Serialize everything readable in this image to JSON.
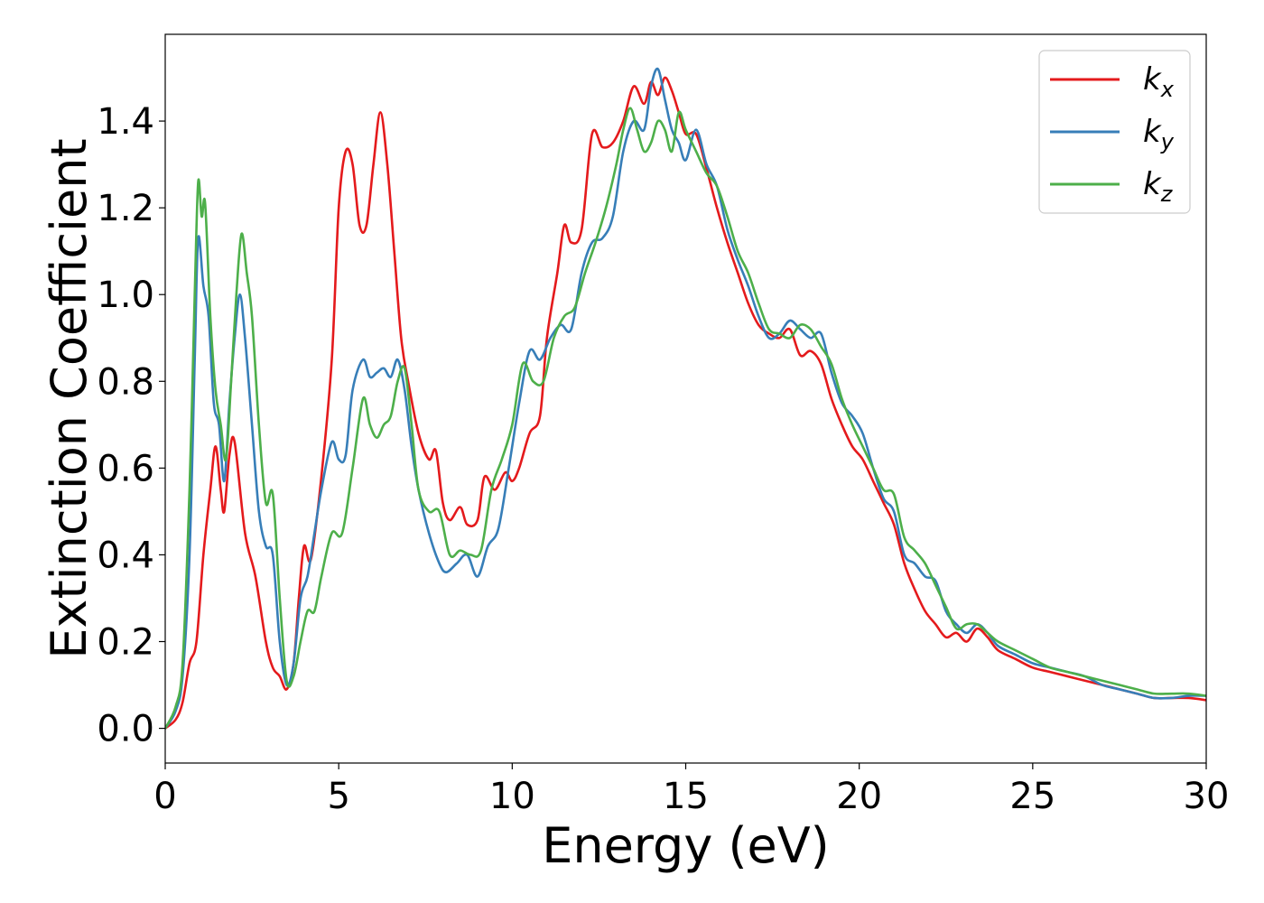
{
  "chart_data": {
    "type": "line",
    "title": "",
    "xlabel": "Energy (eV)",
    "ylabel": "Extinction Coefficient",
    "xlim": [
      0,
      30
    ],
    "ylim": [
      -0.08,
      1.6
    ],
    "xticks": [
      0,
      5,
      10,
      15,
      20,
      25,
      30
    ],
    "xtick_labels": [
      "0",
      "5",
      "10",
      "15",
      "20",
      "25",
      "30"
    ],
    "yticks": [
      0.0,
      0.2,
      0.4,
      0.6,
      0.8,
      1.0,
      1.2,
      1.4
    ],
    "ytick_labels": [
      "0.0",
      "0.2",
      "0.4",
      "0.6",
      "0.8",
      "1.0",
      "1.2",
      "1.4"
    ],
    "grid": false,
    "legend_position": "top-right",
    "series": [
      {
        "name": "k",
        "subscript": "x",
        "color": "#e41a1c",
        "x": [
          0,
          0.3,
          0.5,
          0.7,
          0.9,
          1.1,
          1.3,
          1.45,
          1.6,
          1.7,
          1.85,
          2.0,
          2.3,
          2.6,
          2.9,
          3.1,
          3.3,
          3.5,
          3.7,
          3.85,
          4.0,
          4.2,
          4.5,
          4.8,
          5.0,
          5.2,
          5.4,
          5.6,
          5.8,
          6.0,
          6.2,
          6.4,
          6.6,
          6.8,
          7.0,
          7.3,
          7.6,
          7.8,
          8.0,
          8.2,
          8.5,
          8.7,
          9.0,
          9.2,
          9.5,
          9.8,
          10.0,
          10.2,
          10.5,
          10.8,
          11.0,
          11.3,
          11.5,
          11.7,
          12.0,
          12.3,
          12.6,
          12.9,
          13.2,
          13.5,
          13.8,
          14.0,
          14.2,
          14.4,
          14.6,
          14.8,
          15.0,
          15.3,
          15.6,
          15.9,
          16.2,
          16.5,
          16.8,
          17.1,
          17.4,
          17.7,
          18.0,
          18.3,
          18.6,
          18.9,
          19.2,
          19.5,
          19.8,
          20.1,
          20.4,
          20.7,
          21.0,
          21.3,
          21.6,
          21.9,
          22.2,
          22.5,
          22.8,
          23.1,
          23.4,
          23.7,
          24.0,
          24.5,
          25.0,
          25.5,
          26.0,
          26.5,
          27.0,
          27.5,
          28.0,
          28.5,
          29.0,
          29.5,
          30.0
        ],
        "values": [
          0.0,
          0.02,
          0.06,
          0.15,
          0.2,
          0.4,
          0.55,
          0.65,
          0.55,
          0.5,
          0.63,
          0.66,
          0.45,
          0.35,
          0.2,
          0.14,
          0.12,
          0.09,
          0.15,
          0.3,
          0.42,
          0.39,
          0.58,
          0.85,
          1.2,
          1.33,
          1.3,
          1.16,
          1.16,
          1.3,
          1.42,
          1.3,
          1.1,
          0.9,
          0.8,
          0.68,
          0.62,
          0.64,
          0.52,
          0.48,
          0.51,
          0.47,
          0.48,
          0.58,
          0.55,
          0.59,
          0.57,
          0.6,
          0.68,
          0.72,
          0.9,
          1.05,
          1.16,
          1.12,
          1.15,
          1.37,
          1.34,
          1.35,
          1.4,
          1.48,
          1.44,
          1.49,
          1.46,
          1.5,
          1.47,
          1.42,
          1.37,
          1.37,
          1.29,
          1.2,
          1.12,
          1.05,
          0.98,
          0.93,
          0.91,
          0.9,
          0.92,
          0.86,
          0.87,
          0.84,
          0.76,
          0.7,
          0.65,
          0.62,
          0.57,
          0.52,
          0.47,
          0.38,
          0.32,
          0.27,
          0.24,
          0.21,
          0.22,
          0.2,
          0.23,
          0.21,
          0.18,
          0.16,
          0.14,
          0.13,
          0.12,
          0.11,
          0.1,
          0.09,
          0.08,
          0.07,
          0.07,
          0.07,
          0.065
        ]
      },
      {
        "name": "k",
        "subscript": "y",
        "color": "#377eb8",
        "x": [
          0,
          0.3,
          0.5,
          0.7,
          0.85,
          0.95,
          1.1,
          1.25,
          1.4,
          1.55,
          1.7,
          1.85,
          2.0,
          2.15,
          2.3,
          2.5,
          2.7,
          2.9,
          3.1,
          3.3,
          3.5,
          3.7,
          3.9,
          4.1,
          4.3,
          4.5,
          4.8,
          5.0,
          5.2,
          5.4,
          5.7,
          5.9,
          6.1,
          6.3,
          6.5,
          6.7,
          6.9,
          7.1,
          7.3,
          7.6,
          7.9,
          8.1,
          8.4,
          8.7,
          9.0,
          9.3,
          9.6,
          9.9,
          10.2,
          10.5,
          10.8,
          11.1,
          11.4,
          11.7,
          12.0,
          12.3,
          12.6,
          12.9,
          13.2,
          13.5,
          13.8,
          14.0,
          14.2,
          14.4,
          14.6,
          14.8,
          15.0,
          15.3,
          15.6,
          15.9,
          16.2,
          16.5,
          16.8,
          17.1,
          17.4,
          17.7,
          18.0,
          18.3,
          18.6,
          18.9,
          19.2,
          19.5,
          19.8,
          20.1,
          20.4,
          20.7,
          21.0,
          21.3,
          21.6,
          21.9,
          22.2,
          22.5,
          22.8,
          23.1,
          23.4,
          23.7,
          24.0,
          24.5,
          25.0,
          25.5,
          26.0,
          26.5,
          27.0,
          27.5,
          28.0,
          28.5,
          29.0,
          29.5,
          30.0
        ],
        "values": [
          0.0,
          0.04,
          0.12,
          0.4,
          0.85,
          1.13,
          1.02,
          0.95,
          0.75,
          0.7,
          0.57,
          0.75,
          0.9,
          1.0,
          0.9,
          0.7,
          0.5,
          0.42,
          0.4,
          0.2,
          0.1,
          0.15,
          0.3,
          0.35,
          0.45,
          0.55,
          0.66,
          0.62,
          0.63,
          0.78,
          0.85,
          0.81,
          0.82,
          0.83,
          0.81,
          0.85,
          0.78,
          0.65,
          0.55,
          0.45,
          0.38,
          0.36,
          0.38,
          0.4,
          0.35,
          0.42,
          0.46,
          0.6,
          0.75,
          0.87,
          0.85,
          0.9,
          0.93,
          0.92,
          1.05,
          1.12,
          1.13,
          1.18,
          1.33,
          1.4,
          1.38,
          1.48,
          1.52,
          1.45,
          1.38,
          1.35,
          1.31,
          1.38,
          1.3,
          1.25,
          1.15,
          1.08,
          1.02,
          0.95,
          0.9,
          0.91,
          0.94,
          0.92,
          0.9,
          0.91,
          0.82,
          0.75,
          0.72,
          0.68,
          0.6,
          0.53,
          0.5,
          0.4,
          0.38,
          0.35,
          0.34,
          0.27,
          0.24,
          0.22,
          0.24,
          0.22,
          0.19,
          0.17,
          0.15,
          0.14,
          0.13,
          0.12,
          0.1,
          0.09,
          0.08,
          0.07,
          0.07,
          0.075,
          0.075
        ]
      },
      {
        "name": "k",
        "subscript": "z",
        "color": "#4daf4a",
        "x": [
          0,
          0.3,
          0.5,
          0.7,
          0.85,
          0.95,
          1.05,
          1.15,
          1.3,
          1.45,
          1.6,
          1.75,
          1.9,
          2.05,
          2.2,
          2.35,
          2.5,
          2.7,
          2.9,
          3.1,
          3.3,
          3.5,
          3.7,
          3.9,
          4.1,
          4.3,
          4.5,
          4.8,
          5.1,
          5.4,
          5.7,
          5.9,
          6.1,
          6.3,
          6.5,
          6.7,
          6.9,
          7.1,
          7.3,
          7.6,
          7.9,
          8.2,
          8.5,
          8.8,
          9.1,
          9.4,
          9.7,
          10.0,
          10.3,
          10.6,
          10.9,
          11.2,
          11.5,
          11.8,
          12.1,
          12.4,
          12.7,
          13.0,
          13.2,
          13.4,
          13.6,
          13.8,
          14.0,
          14.2,
          14.4,
          14.6,
          14.8,
          15.0,
          15.3,
          15.6,
          15.9,
          16.2,
          16.5,
          16.8,
          17.1,
          17.4,
          17.7,
          18.0,
          18.3,
          18.6,
          18.9,
          19.2,
          19.5,
          19.8,
          20.1,
          20.4,
          20.7,
          21.0,
          21.3,
          21.6,
          21.9,
          22.2,
          22.5,
          22.8,
          23.1,
          23.4,
          23.7,
          24.0,
          24.5,
          25.0,
          25.5,
          26.0,
          26.5,
          27.0,
          27.5,
          28.0,
          28.5,
          29.0,
          29.5,
          30.0
        ],
        "values": [
          0.0,
          0.05,
          0.15,
          0.55,
          1.0,
          1.26,
          1.18,
          1.21,
          0.95,
          0.78,
          0.7,
          0.62,
          0.8,
          1.0,
          1.14,
          1.05,
          0.95,
          0.7,
          0.52,
          0.54,
          0.3,
          0.11,
          0.12,
          0.2,
          0.27,
          0.27,
          0.35,
          0.45,
          0.45,
          0.6,
          0.76,
          0.7,
          0.67,
          0.7,
          0.72,
          0.8,
          0.83,
          0.7,
          0.55,
          0.5,
          0.5,
          0.4,
          0.41,
          0.4,
          0.41,
          0.55,
          0.62,
          0.7,
          0.84,
          0.8,
          0.8,
          0.9,
          0.95,
          0.97,
          1.05,
          1.12,
          1.2,
          1.3,
          1.38,
          1.43,
          1.38,
          1.33,
          1.35,
          1.4,
          1.38,
          1.33,
          1.42,
          1.38,
          1.33,
          1.28,
          1.25,
          1.18,
          1.1,
          1.05,
          0.98,
          0.92,
          0.91,
          0.9,
          0.93,
          0.92,
          0.88,
          0.84,
          0.76,
          0.7,
          0.65,
          0.6,
          0.55,
          0.54,
          0.44,
          0.41,
          0.38,
          0.33,
          0.28,
          0.23,
          0.24,
          0.24,
          0.22,
          0.2,
          0.18,
          0.16,
          0.14,
          0.13,
          0.12,
          0.11,
          0.1,
          0.09,
          0.08,
          0.08,
          0.08,
          0.075
        ]
      }
    ]
  }
}
